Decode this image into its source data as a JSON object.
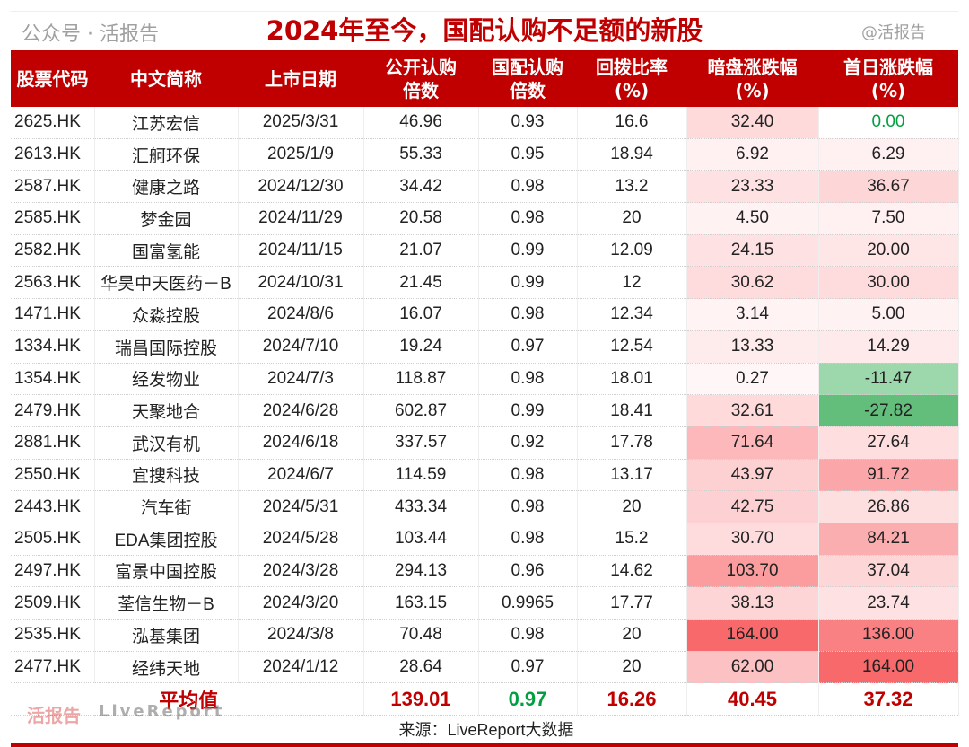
{
  "title": "2024年至今，国配认购不足额的新股",
  "columns": [
    "股票代码",
    "中文简称",
    "上市日期",
    "公开认购\n倍数",
    "国配认购\n倍数",
    "回拨比率\n(%)",
    "暗盘涨跌幅\n(%)",
    "首日涨跌幅\n(%)"
  ],
  "rows": [
    [
      "2625.HK",
      "江苏宏信",
      "2025/3/31",
      "46.96",
      "0.93",
      "16.6",
      "32.40",
      "0.00"
    ],
    [
      "2613.HK",
      "汇舸环保",
      "2025/1/9",
      "55.33",
      "0.95",
      "18.94",
      "6.92",
      "6.29"
    ],
    [
      "2587.HK",
      "健康之路",
      "2024/12/30",
      "34.42",
      "0.98",
      "13.2",
      "23.33",
      "36.67"
    ],
    [
      "2585.HK",
      "梦金园",
      "2024/11/29",
      "20.58",
      "0.98",
      "20",
      "4.50",
      "7.50"
    ],
    [
      "2582.HK",
      "国富氢能",
      "2024/11/15",
      "21.07",
      "0.99",
      "12.09",
      "24.15",
      "20.00"
    ],
    [
      "2563.HK",
      "华昊中天医药－B",
      "2024/10/31",
      "21.45",
      "0.99",
      "12",
      "30.62",
      "30.00"
    ],
    [
      "1471.HK",
      "众淼控股",
      "2024/8/6",
      "16.07",
      "0.98",
      "12.34",
      "3.14",
      "5.00"
    ],
    [
      "1334.HK",
      "瑞昌国际控股",
      "2024/7/10",
      "19.24",
      "0.97",
      "12.54",
      "13.33",
      "14.29"
    ],
    [
      "1354.HK",
      "经发物业",
      "2024/7/3",
      "118.87",
      "0.98",
      "18.01",
      "0.27",
      "-11.47"
    ],
    [
      "2479.HK",
      "天聚地合",
      "2024/6/28",
      "602.87",
      "0.99",
      "18.41",
      "32.61",
      "-27.82"
    ],
    [
      "2881.HK",
      "武汉有机",
      "2024/6/18",
      "337.57",
      "0.92",
      "17.78",
      "71.64",
      "27.64"
    ],
    [
      "2550.HK",
      "宜搜科技",
      "2024/6/7",
      "114.59",
      "0.98",
      "13.17",
      "43.97",
      "91.72"
    ],
    [
      "2443.HK",
      "汽车街",
      "2024/5/31",
      "433.34",
      "0.98",
      "20",
      "42.75",
      "26.86"
    ],
    [
      "2505.HK",
      "EDA集团控股",
      "2024/5/28",
      "103.44",
      "0.98",
      "15.2",
      "30.70",
      "84.21"
    ],
    [
      "2497.HK",
      "富景中国控股",
      "2024/3/28",
      "294.13",
      "0.96",
      "14.62",
      "103.70",
      "37.04"
    ],
    [
      "2509.HK",
      "荃信生物－B",
      "2024/3/20",
      "163.15",
      "0.9965",
      "17.77",
      "38.13",
      "23.74"
    ],
    [
      "2535.HK",
      "泓基集团",
      "2024/3/8",
      "70.48",
      "0.98",
      "20",
      "164.00",
      "136.00"
    ],
    [
      "2477.HK",
      "经纬天地",
      "2024/1/12",
      "28.64",
      "0.97",
      "20",
      "62.00",
      "164.00"
    ]
  ],
  "average": {
    "label": "平均值",
    "values": [
      "139.01",
      "0.97",
      "16.26",
      "40.45",
      "37.32"
    ]
  },
  "source": "来源：LiveReport大数据",
  "watermarks": {
    "logo": "活报告",
    "logo_en": "LiveReport",
    "account": "公众号 · 活报告",
    "handle": "@活报告"
  },
  "colors": {
    "brand_red": "#c00000",
    "heat_max": "#f8696b",
    "heat_min": "#fce4e6",
    "neg_green": "#63be7b",
    "avg_green": "#00a040",
    "zero_text": "#00a040"
  }
}
